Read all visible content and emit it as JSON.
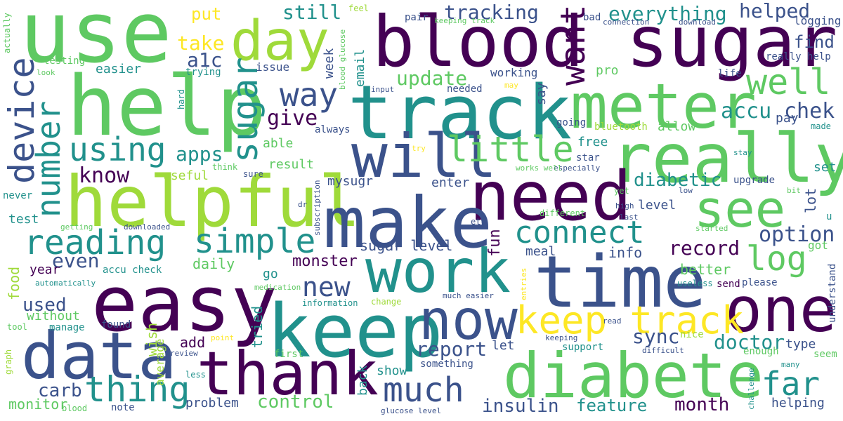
{
  "colors": {
    "background": "#ffffff",
    "palette": [
      "#440154",
      "#3b528b",
      "#21918c",
      "#5ec962",
      "#fde725"
    ]
  },
  "words": {
    "use": "use",
    "blood_sugar": "blood sugar",
    "day": "day",
    "help": "help",
    "track": "track",
    "meter": "meter",
    "really": "really",
    "helpful": "helpful",
    "will": "will",
    "need": "need",
    "make": "make",
    "see": "see",
    "easy": "easy",
    "work": "work",
    "time": "time",
    "one": "one",
    "keep": "keep",
    "data": "data",
    "thank": "thank",
    "now": "now",
    "keep_track": "keep track",
    "diabete": "diabete",
    "much": "much",
    "thing": "thing",
    "little": "little",
    "well": "well",
    "device": "device",
    "number": "number",
    "using": "using",
    "sugar": "sugar",
    "way": "way",
    "reading": "reading",
    "simple": "simple",
    "connect": "connect",
    "log": "log",
    "want": "want",
    "tracking": "tracking",
    "everything": "everything",
    "helped": "helped",
    "update": "update",
    "accu": "accu",
    "chek": "chek",
    "apps": "apps",
    "give": "give",
    "know": "know",
    "a1c": "a1c",
    "take": "take",
    "put": "put",
    "still": "still",
    "find": "find",
    "really_help": "really help",
    "logging": "logging",
    "download": "download",
    "connection": "connection",
    "bad": "bad",
    "keeping_track": "keeping track",
    "pair": "pair",
    "feel": "feel",
    "actually": "actually",
    "testing": "testing",
    "easier": "easier",
    "look": "look",
    "trying": "trying",
    "issue": "issue",
    "week": "week",
    "email": "email",
    "blood_glucose": "blood glucose",
    "input": "input",
    "needed": "needed",
    "may": "may",
    "working": "working",
    "pro": "pro",
    "say": "say",
    "life": "life",
    "hard": "hard",
    "going": "going",
    "bluetooth": "bluetooth",
    "allow": "allow",
    "pay": "pay",
    "made": "made",
    "free": "free",
    "star": "star",
    "especially": "especially",
    "works_well": "works well",
    "try": "try",
    "always": "always",
    "able": "able",
    "result": "result",
    "useful": "useful",
    "think": "think",
    "sure": "sure",
    "mysugr": "mysugr",
    "enter": "enter",
    "diabetic": "diabetic",
    "level": "level",
    "upgrade": "upgrade",
    "set": "set",
    "stay": "stay",
    "lot": "lot",
    "bit": "bit",
    "low": "low",
    "yet": "yet",
    "high": "high",
    "last": "last",
    "different": "different",
    "never": "never",
    "test": "test",
    "getting": "getting",
    "downloaded": "downloaded",
    "dr": "dr",
    "subscription": "subscription",
    "etc": "etc",
    "started": "started",
    "u": "u",
    "option": "option",
    "record": "record",
    "got": "got",
    "sugar_level": "sugar level",
    "fun": "fun",
    "meal": "meal",
    "info": "info",
    "even": "even",
    "daily": "daily",
    "monster": "monster",
    "year": "year",
    "accu_check": "accu check",
    "better": "better",
    "understand": "understand",
    "useless": "useless",
    "send": "send",
    "please": "please",
    "food": "food",
    "automatically": "automatically",
    "medication": "medication",
    "go": "go",
    "new": "new",
    "entries": "entries",
    "used": "used",
    "without": "without",
    "information": "information",
    "change": "change",
    "much_easier": "much easier",
    "tool": "tool",
    "manage": "manage",
    "found": "found",
    "average": "average",
    "wish": "wish",
    "tried": "tried",
    "read": "read",
    "nice": "nice",
    "keeping": "keeping",
    "difficult": "difficult",
    "doctor": "doctor",
    "point": "point",
    "add": "add",
    "report": "report",
    "let": "let",
    "support": "support",
    "enough": "enough",
    "type": "type",
    "graph": "graph",
    "review": "review",
    "first": "first",
    "seem": "seem",
    "many": "many",
    "challenge": "challenge",
    "less": "less",
    "show": "show",
    "something": "something",
    "carb": "carb",
    "back": "back",
    "control": "control",
    "problem": "problem",
    "insulin": "insulin",
    "feature": "feature",
    "month": "month",
    "far": "far",
    "sync": "sync",
    "helping": "helping",
    "monitor": "monitor",
    "blood": "blood",
    "note": "note",
    "glucose_level": "glucose level"
  }
}
